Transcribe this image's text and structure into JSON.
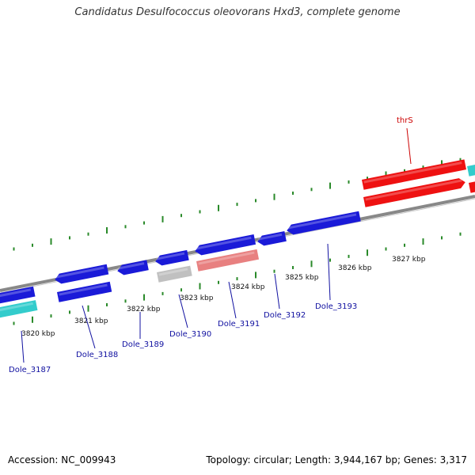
{
  "title": "Candidatus Desulfococcus oleovorans Hxd3, complete genome",
  "footer": {
    "accession": "Accession: NC_009943",
    "stats": "Topology: circular; Length: 3,944,167 bp; Genes: 3,317"
  },
  "colors": {
    "blue_gene": "#1a1ad8",
    "red_gene": "#ee1111",
    "pink_gene": "#e88080",
    "cyan_gene": "#33cccc",
    "gray_gene": "#c0c0c0",
    "backbone": "#888888",
    "ticks": "#2a8a2a",
    "label_blue": "#1010a0",
    "label_red": "#cc0000"
  },
  "kbp_ticks": [
    "3820 kbp",
    "3821 kbp",
    "3822 kbp",
    "3823 kbp",
    "3824 kbp",
    "3825 kbp",
    "3826 kbp",
    "3827 kbp"
  ],
  "genes": [
    {
      "label": "Dole_3187",
      "color": "blue",
      "strand": "top"
    },
    {
      "label": "",
      "color": "cyan",
      "strand": "bottom"
    },
    {
      "label": "Dole_3188",
      "color": "blue",
      "strand": "both"
    },
    {
      "label": "Dole_3189",
      "color": "blue",
      "strand": "top"
    },
    {
      "label": "Dole_3190",
      "color": "blue",
      "strand": "top"
    },
    {
      "label": "",
      "color": "gray",
      "strand": "bottom"
    },
    {
      "label": "Dole_3191",
      "color": "blue",
      "strand": "top"
    },
    {
      "label": "",
      "color": "pink",
      "strand": "bottom"
    },
    {
      "label": "Dole_3192",
      "color": "blue",
      "strand": "top"
    },
    {
      "label": "Dole_3193",
      "color": "blue",
      "strand": "top"
    },
    {
      "label": "thrS",
      "color": "red",
      "strand": "both"
    }
  ]
}
